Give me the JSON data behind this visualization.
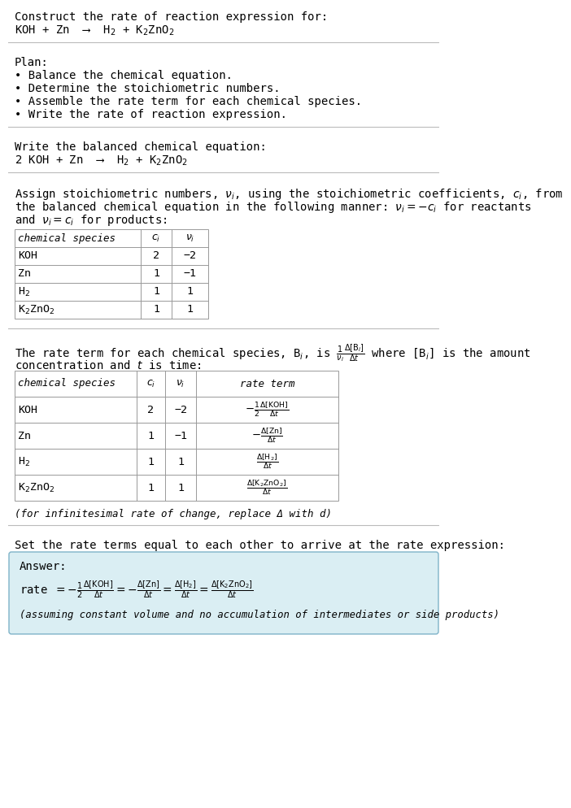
{
  "bg_color": "#ffffff",
  "answer_bg": "#daeef3",
  "answer_border": "#7fb3c8",
  "line_color": "#cccccc",
  "title_line1": "Construct the rate of reaction expression for:",
  "title_eq": "KOH + Zn  ⟶  H$_2$ + K$_2$ZnO$_2$",
  "plan_header": "Plan:",
  "plan_items": [
    "• Balance the chemical equation.",
    "• Determine the stoichiometric numbers.",
    "• Assemble the rate term for each chemical species.",
    "• Write the rate of reaction expression."
  ],
  "balanced_header": "Write the balanced chemical equation:",
  "balanced_eq": "2 KOH + Zn  ⟶  H$_2$ + K$_2$ZnO$_2$",
  "assign_lines": [
    "Assign stoichiometric numbers, $\\nu_i$, using the stoichiometric coefficients, $c_i$, from",
    "the balanced chemical equation in the following manner: $\\nu_i = -c_i$ for reactants",
    "and $\\nu_i = c_i$ for products:"
  ],
  "table1_species": [
    "KOH",
    "Zn",
    "H$_2$",
    "K$_2$ZnO$_2$"
  ],
  "table1_ci": [
    "2",
    "1",
    "1",
    "1"
  ],
  "table1_ni": [
    "−2",
    "−1",
    "1",
    "1"
  ],
  "rate_line1": "The rate term for each chemical species, B$_i$, is $\\frac{1}{\\nu_i}\\frac{\\Delta[\\mathrm{B}_i]}{\\Delta t}$ where [B$_i$] is the amount",
  "rate_line2": "concentration and $t$ is time:",
  "table2_species": [
    "KOH",
    "Zn",
    "H$_2$",
    "K$_2$ZnO$_2$"
  ],
  "table2_ci": [
    "2",
    "1",
    "1",
    "1"
  ],
  "table2_ni": [
    "−2",
    "−1",
    "1",
    "1"
  ],
  "table2_rate": [
    "$-\\frac{1}{2}\\frac{\\Delta[\\mathrm{KOH}]}{\\Delta t}$",
    "$-\\frac{\\Delta[\\mathrm{Zn}]}{\\Delta t}$",
    "$\\frac{\\Delta[\\mathrm{H_2}]}{\\Delta t}$",
    "$\\frac{\\Delta[\\mathrm{K_2ZnO_2}]}{\\Delta t}$"
  ],
  "infinitesimal": "(for infinitesimal rate of change, replace Δ with d)",
  "set_equal": "Set the rate terms equal to each other to arrive at the rate expression:",
  "answer_label": "Answer:",
  "rate_expr_parts": [
    "rate $= -\\frac{1}{2}\\frac{\\Delta[\\mathrm{KOH}]}{\\Delta t} = -\\frac{\\Delta[\\mathrm{Zn}]}{\\Delta t} = \\frac{\\Delta[\\mathrm{H_2}]}{\\Delta t} = \\frac{\\Delta[\\mathrm{K_2ZnO_2}]}{\\Delta t}$"
  ],
  "assuming": "(assuming constant volume and no accumulation of intermediates or side products)"
}
